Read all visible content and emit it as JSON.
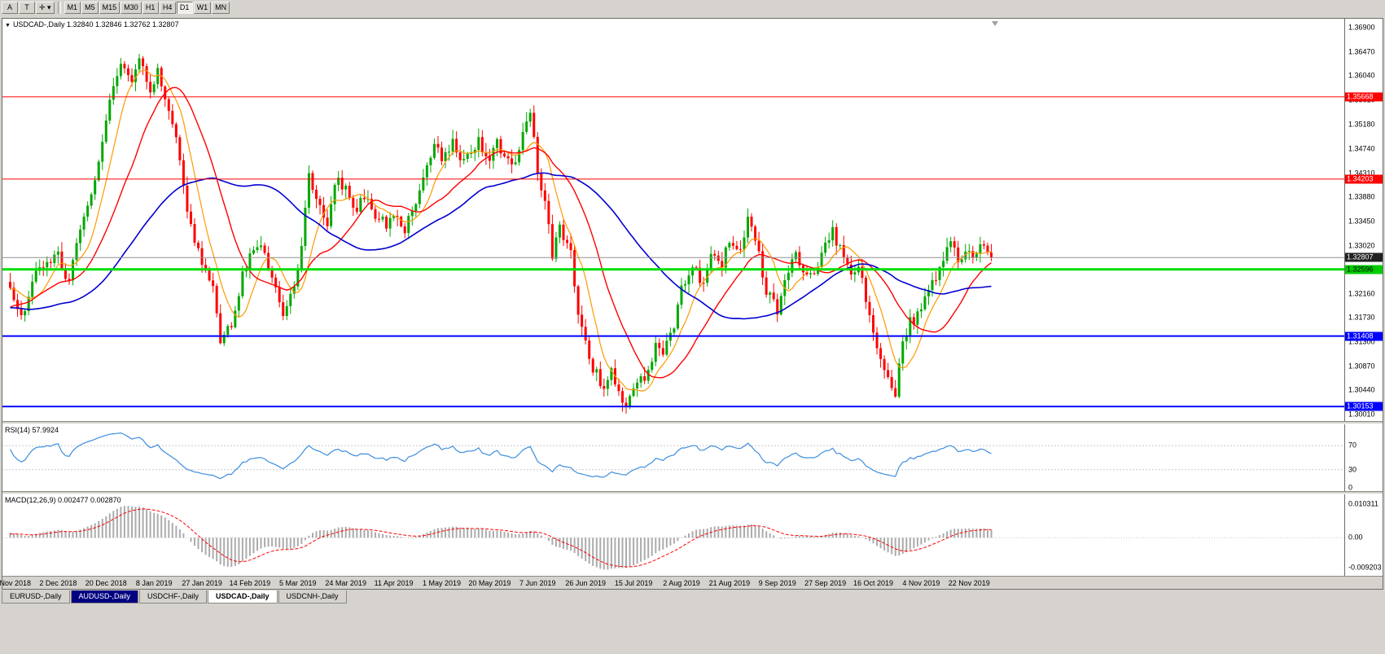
{
  "app": {
    "background": "#d6d3ce"
  },
  "toolbar": {
    "left_buttons": [
      {
        "name": "cursor-mode-button",
        "label": "A"
      },
      {
        "name": "text-tool-button",
        "label": "T"
      },
      {
        "name": "crosshair-tool-button",
        "label": "✛",
        "caret": "▾"
      }
    ],
    "timeframes": [
      {
        "label": "M1"
      },
      {
        "label": "M5"
      },
      {
        "label": "M15"
      },
      {
        "label": "M30"
      },
      {
        "label": "H1"
      },
      {
        "label": "H4"
      },
      {
        "label": "D1",
        "active": true
      },
      {
        "label": "W1"
      },
      {
        "label": "MN"
      }
    ]
  },
  "chart": {
    "title": "USDCAD-,Daily 1.32840 1.32846 1.32762 1.32807",
    "marker_icon": "▼"
  },
  "chart_data": {
    "type": "candlestick",
    "symbol": "USDCAD",
    "timeframe": "Daily",
    "ohlc": {
      "open": "1.32840",
      "high": "1.32846",
      "low": "1.32762",
      "close": "1.32807"
    },
    "last_price": 1.32807,
    "bars_total": 267,
    "colors": {
      "up": "#00A800",
      "down": "#FF0000"
    },
    "price_axis": {
      "min": 1.3001,
      "max": 1.369,
      "ticks": [
        "1.36900",
        "1.36470",
        "1.36040",
        "1.35610",
        "1.35180",
        "1.34740",
        "1.34310",
        "1.33880",
        "1.33450",
        "1.33020",
        "1.32590",
        "1.32160",
        "1.31730",
        "1.31300",
        "1.30870",
        "1.30440",
        "1.30010"
      ]
    },
    "time_axis_labels": [
      "13 Nov 2018",
      "2 Dec 2018",
      "20 Dec 2018",
      "8 Jan 2019",
      "27 Jan 2019",
      "14 Feb 2019",
      "5 Mar 2019",
      "24 Mar 2019",
      "11 Apr 2019",
      "1 May 2019",
      "20 May 2019",
      "7 Jun 2019",
      "26 Jun 2019",
      "15 Jul 2019",
      "2 Aug 2019",
      "21 Aug 2019",
      "9 Sep 2019",
      "27 Sep 2019",
      "16 Oct 2019",
      "4 Nov 2019",
      "22 Nov 2019"
    ],
    "horizontal_lines": [
      {
        "price": 1.35668,
        "label": "1.35668",
        "color": "#FF0000",
        "width": 1,
        "label_bg": "#FF0000",
        "label_fg": "#FFFFFF"
      },
      {
        "price": 1.34203,
        "label": "1.34203",
        "color": "#FF0000",
        "width": 1,
        "label_bg": "#FF0000",
        "label_fg": "#FFFFFF"
      },
      {
        "price": 1.32807,
        "label": "1.32807",
        "color": "#909090",
        "width": 1,
        "label_bg": "#202020",
        "label_fg": "#FFFFFF"
      },
      {
        "price": 1.32596,
        "label": "1.32596",
        "color": "#00DD00",
        "width": 3,
        "label_bg": "#00CC00",
        "label_fg": "#000000"
      },
      {
        "price": 1.31408,
        "label": "1.31408",
        "color": "#0000FF",
        "width": 2,
        "label_bg": "#0000FF",
        "label_fg": "#FFFFFF"
      },
      {
        "price": 1.30153,
        "label": "1.30153",
        "color": "#0000FF",
        "width": 2,
        "label_bg": "#0000FF",
        "label_fg": "#FFFFFF"
      }
    ],
    "moving_averages": [
      {
        "name": "fast-ma",
        "period": 8,
        "color": "#FF9900",
        "width": 1.2
      },
      {
        "name": "medium-ma",
        "period": 20,
        "color": "#FF0000",
        "width": 1.4
      },
      {
        "name": "slow-ma",
        "period": 50,
        "color": "#0000D0",
        "width": 1.6
      }
    ],
    "price_path_anchors": {
      "indices": [
        -60,
        -45,
        -30,
        -15,
        -5,
        0,
        3,
        8,
        13,
        16,
        20,
        24,
        27,
        30,
        33,
        35,
        38,
        40,
        43,
        46,
        49,
        52,
        55,
        57,
        60,
        63,
        65,
        68,
        71,
        74,
        77,
        79,
        81,
        83,
        86,
        88,
        91,
        94,
        96,
        99,
        102,
        104,
        107,
        110,
        113,
        115,
        117,
        120,
        122,
        125,
        127,
        130,
        132,
        135,
        137,
        139,
        141,
        143,
        145,
        147,
        149,
        152,
        154,
        156,
        158,
        161,
        163,
        165,
        167,
        169,
        172,
        175,
        177,
        180,
        182,
        185,
        188,
        190,
        193,
        195,
        198,
        200,
        203,
        205,
        208,
        210,
        213,
        215,
        218,
        221,
        223,
        226,
        228,
        230,
        232,
        234,
        236,
        238,
        240,
        242,
        244,
        247,
        249,
        251,
        253,
        255,
        257,
        259,
        261,
        263,
        266
      ],
      "closes": [
        1.315,
        1.323,
        1.317,
        1.315,
        1.323,
        1.323,
        1.3175,
        1.327,
        1.329,
        1.3235,
        1.336,
        1.3445,
        1.3555,
        1.362,
        1.359,
        1.3645,
        1.3575,
        1.362,
        1.354,
        1.346,
        1.333,
        1.327,
        1.323,
        1.313,
        1.3165,
        1.3245,
        1.328,
        1.3305,
        1.3245,
        1.3175,
        1.323,
        1.331,
        1.342,
        1.3385,
        1.3345,
        1.342,
        1.34,
        1.336,
        1.3395,
        1.336,
        1.334,
        1.3365,
        1.3325,
        1.3385,
        1.344,
        1.348,
        1.346,
        1.3485,
        1.3445,
        1.3465,
        1.3485,
        1.3445,
        1.3485,
        1.345,
        1.3445,
        1.3505,
        1.3545,
        1.3425,
        1.3385,
        1.3285,
        1.334,
        1.3285,
        1.3185,
        1.3125,
        1.3085,
        1.305,
        1.3085,
        1.304,
        1.3022,
        1.3045,
        1.3065,
        1.3125,
        1.3105,
        1.316,
        1.3225,
        1.3265,
        1.3225,
        1.3285,
        1.3265,
        1.3315,
        1.3295,
        1.3345,
        1.3285,
        1.3225,
        1.3185,
        1.3245,
        1.3285,
        1.3265,
        1.3245,
        1.3305,
        1.3325,
        1.3285,
        1.3245,
        1.3265,
        1.3205,
        1.3145,
        1.3105,
        1.3065,
        1.3042,
        1.3125,
        1.3165,
        1.3185,
        1.3225,
        1.3245,
        1.3285,
        1.3305,
        1.3272,
        1.3295,
        1.3282,
        1.33,
        1.3281
      ]
    },
    "indicators": {
      "rsi": {
        "label": "RSI(14) 57.9924",
        "period": 14,
        "value": "57.9924",
        "levels": [
          70,
          30
        ],
        "scale_labels": [
          "70",
          "30",
          "0"
        ],
        "color": "#3E8EDE"
      },
      "macd": {
        "label": "MACD(12,26,9) 0.002477 0.002870",
        "fast": 12,
        "slow": 26,
        "signal": 9,
        "values": [
          "0.002477",
          "0.002870"
        ],
        "scale_labels": [
          "0.010311",
          "0.00",
          "-0.009203"
        ],
        "scale_max": 0.010311,
        "scale_min": -0.009203,
        "histogram_color": "#ABABAB",
        "signal_color": "#FF0000"
      }
    }
  },
  "tabs": {
    "items": [
      {
        "label": "EURUSD-,Daily",
        "state": "normal"
      },
      {
        "label": "AUDUSD-,Daily",
        "state": "highlighted"
      },
      {
        "label": "USDCHF-,Daily",
        "state": "normal"
      },
      {
        "label": "USDCAD-,Daily",
        "state": "active"
      },
      {
        "label": "USDCNH-,Daily",
        "state": "normal"
      }
    ]
  }
}
